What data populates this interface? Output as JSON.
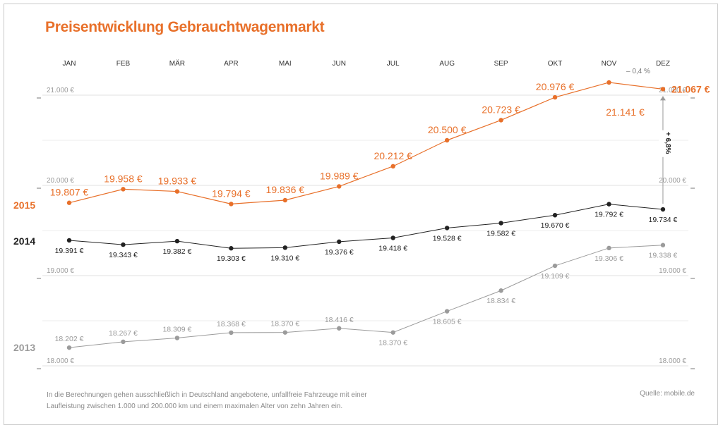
{
  "title": "Preisentwicklung Gebrauchtwagenmarkt",
  "footnote": "In die Berechnungen gehen ausschließlich in Deutschland angebotene, unfallfreie Fahrzeuge mit einer Laufleistung zwischen 1.000 und 200.000 km und einem maximalen Alter von zehn Jahren ein.",
  "source": "Quelle: mobile.de",
  "chart_data": {
    "type": "line",
    "title": "Preisentwicklung Gebrauchtwagenmarkt",
    "categories": [
      "JAN",
      "FEB",
      "MÄR",
      "APR",
      "MAI",
      "JUN",
      "JUL",
      "AUG",
      "SEP",
      "OKT",
      "NOV",
      "DEZ"
    ],
    "y_ticks": [
      {
        "value": 21000,
        "label": "21.000 €"
      },
      {
        "value": 20000,
        "label": "20.000 €"
      },
      {
        "value": 19000,
        "label": "19.000 €"
      },
      {
        "value": 18000,
        "label": "18.000 €"
      }
    ],
    "series": [
      {
        "name": "2015",
        "color": "#e8702a",
        "values": [
          19807,
          19958,
          19933,
          19794,
          19836,
          19989,
          20212,
          20500,
          20723,
          20976,
          21141,
          21067
        ],
        "labels": [
          "19.807 €",
          "19.958 €",
          "19.933 €",
          "19.794 €",
          "19.836 €",
          "19.989 €",
          "20.212 €",
          "20.500 €",
          "20.723 €",
          "20.976 €",
          "21.141 €",
          "21.067 €"
        ]
      },
      {
        "name": "2014",
        "color": "#222222",
        "values": [
          19391,
          19343,
          19382,
          19303,
          19310,
          19376,
          19418,
          19528,
          19582,
          19670,
          19792,
          19734
        ],
        "labels": [
          "19.391 €",
          "19.343 €",
          "19.382 €",
          "19.303 €",
          "19.310 €",
          "19.376 €",
          "19.418 €",
          "19.528 €",
          "19.582 €",
          "19.670 €",
          "19.792 €",
          "19.734 €"
        ]
      },
      {
        "name": "2013",
        "color": "#9b9b9b",
        "values": [
          18202,
          18267,
          18309,
          18368,
          18370,
          18416,
          18370,
          18605,
          18834,
          19109,
          19306,
          19338
        ],
        "labels": [
          "18.202 €",
          "18.267 €",
          "18.309 €",
          "18.368 €",
          "18.370 €",
          "18.416 €",
          "18.370 €",
          "18.605 €",
          "18.834 €",
          "19.109 €",
          "19.306 €",
          "19.338 €"
        ]
      }
    ],
    "annotations": {
      "nov_dez_change": "– 0,4 %",
      "yoy_change": "+ 6,8%"
    }
  }
}
